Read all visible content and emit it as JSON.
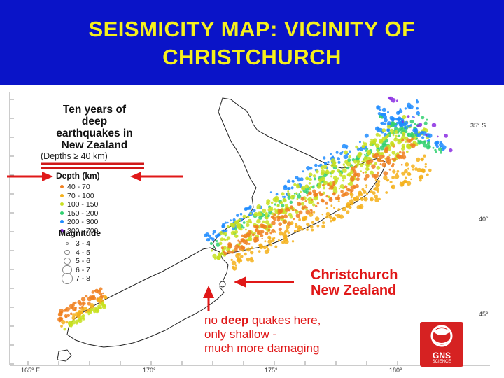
{
  "slide": {
    "title_line1": "SEISMICITY  MAP: VICINITY OF",
    "title_line2": "CHRISTCHURCH",
    "header_color": "#0a14c8",
    "title_color": "#f6f01c"
  },
  "map": {
    "legend": {
      "title_lines": [
        "Ten years of",
        "deep",
        "earthquakes in",
        "New Zealand"
      ],
      "depth_note": "(Depths ≥ 40 km)",
      "depth_heading": "Depth (km)",
      "depth_classes": [
        {
          "label": "40 - 70",
          "color": "#f08020"
        },
        {
          "label": "70 - 100",
          "color": "#f5b01a"
        },
        {
          "label": "100 - 150",
          "color": "#c8e020"
        },
        {
          "label": "150 - 200",
          "color": "#30d070"
        },
        {
          "label": "200 - 300",
          "color": "#1e8cff"
        },
        {
          "label": "300 - 700",
          "color": "#8a2be2"
        }
      ],
      "magnitude_heading": "Magnitude",
      "magnitude_classes": [
        "3 - 4",
        "4 - 5",
        "5 - 6",
        "6 - 7",
        "7 - 8"
      ]
    },
    "annotations": {
      "christchurch_lines": [
        "Christchurch",
        "New Zealand"
      ],
      "note_before": "no ",
      "note_emphasis": "deep",
      "note_after": " quakes here,",
      "note_line2": "only shallow -",
      "note_line3": "much more damaging",
      "annotation_color": "#e01818"
    },
    "lon_labels": [
      "165° E",
      "170°",
      "175°",
      "180°"
    ],
    "lat_labels": [
      "35° S",
      "40°",
      "45°"
    ],
    "logo": {
      "name": "GNS",
      "sub": "SCIENCE",
      "icon": "gns-logo-icon"
    }
  }
}
